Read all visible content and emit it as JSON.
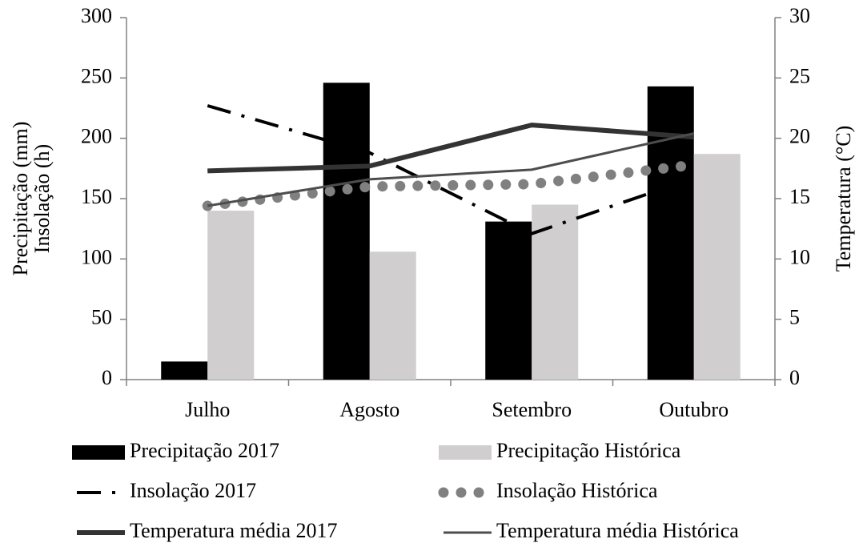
{
  "chart_data": {
    "type": "bar",
    "categories": [
      "Julho",
      "Agosto",
      "Setembro",
      "Outubro"
    ],
    "ylabel": [
      "Precipitação (mm)",
      "Insolação (h)"
    ],
    "y2label": "Temperatura (°C)",
    "ylim": [
      0,
      300
    ],
    "yticks": [
      0,
      50,
      100,
      150,
      200,
      250,
      300
    ],
    "y2lim": [
      0,
      30
    ],
    "y2ticks": [
      0,
      5,
      10,
      15,
      20,
      25,
      30
    ],
    "legend": "bottom",
    "series": [
      {
        "name": "Precipitação 2017",
        "type": "bar",
        "color": "#000000",
        "values": [
          15,
          246,
          131,
          243
        ]
      },
      {
        "name": "Precipitação Histórica",
        "type": "bar",
        "color": "#d0cece",
        "values": [
          140,
          106,
          145,
          187
        ]
      },
      {
        "name": "Insolação 2017",
        "type": "line",
        "line_style": "dashdot",
        "color": "#000000",
        "values": [
          227,
          188,
          121,
          167
        ]
      },
      {
        "name": "Insolação Histórica",
        "type": "line",
        "line_style": "dotted",
        "color": "#808080",
        "values": [
          144,
          160,
          162,
          178
        ]
      },
      {
        "name": "Temperatura média  2017",
        "type": "line",
        "line_style": "thick",
        "color": "#333333",
        "axis": "y2",
        "values": [
          17.3,
          17.7,
          21.1,
          20.1
        ]
      },
      {
        "name": "Temperatura média Histórica",
        "type": "line",
        "line_style": "solid",
        "color": "#4d4d4d",
        "axis": "y2",
        "values": [
          14.4,
          16.6,
          17.4,
          20.4
        ]
      }
    ]
  }
}
